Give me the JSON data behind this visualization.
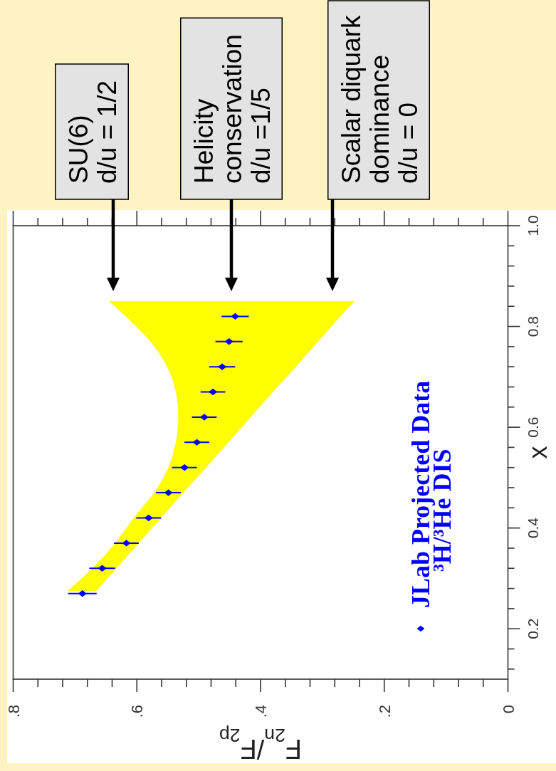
{
  "chart_data": {
    "type": "scatter",
    "orientation": "horizontal",
    "xlabel": "F$_{2n}$/F$_{2p}$",
    "ylabel": "x",
    "xlim": [
      0.8,
      0
    ],
    "ylim": [
      0.1,
      1.0
    ],
    "xticks": [
      0,
      {
        "value": 0.04,
        "label": null
      },
      {
        "value": 0.08,
        "label": null
      },
      {
        "value": 0.12,
        "label": null
      },
      {
        "value": 0.16,
        "label": null
      },
      {
        "value": 0.2,
        "label": ".2"
      },
      {
        "value": 0.24,
        "label": null
      },
      {
        "value": 0.28,
        "label": null
      },
      {
        "value": 0.32,
        "label": null
      },
      {
        "value": 0.36,
        "label": null
      },
      {
        "value": 0.4,
        "label": ".4"
      },
      {
        "value": 0.44,
        "label": null
      },
      {
        "value": 0.48,
        "label": null
      },
      {
        "value": 0.52,
        "label": null
      },
      {
        "value": 0.56,
        "label": null
      },
      {
        "value": 0.6,
        "label": ".6"
      },
      {
        "value": 0.64,
        "label": null
      },
      {
        "value": 0.68,
        "label": null
      },
      {
        "value": 0.72,
        "label": null
      },
      {
        "value": 0.76,
        "label": null
      },
      {
        "value": 0.8,
        "label": ".8"
      }
    ],
    "yticks": [
      {
        "value": 0.12,
        "label": null
      },
      {
        "value": 0.16,
        "label": null
      },
      0.2,
      {
        "value": 0.24,
        "label": null
      },
      {
        "value": 0.28,
        "label": null
      },
      {
        "value": 0.32,
        "label": null
      },
      {
        "value": 0.36,
        "label": null
      },
      0.4,
      {
        "value": 0.44,
        "label": null
      },
      {
        "value": 0.48,
        "label": null
      },
      {
        "value": 0.52,
        "label": null
      },
      {
        "value": 0.56,
        "label": null
      },
      0.6,
      {
        "value": 0.64,
        "label": null
      },
      {
        "value": 0.68,
        "label": null
      },
      {
        "value": 0.72,
        "label": null
      },
      {
        "value": 0.76,
        "label": null
      },
      0.8,
      {
        "value": 0.84,
        "label": null
      },
      {
        "value": 0.88,
        "label": null
      },
      {
        "value": 0.92,
        "label": null
      },
      {
        "value": 0.96,
        "label": null
      },
      {
        "value": 1.0,
        "label": "1.0"
      }
    ],
    "legend": "right",
    "marker": "diamond",
    "series": [
      {
        "type": "area",
        "color": "#ffff00",
        "x": [
          0.275,
          0.32,
          0.37,
          0.42,
          0.47,
          0.52,
          0.57,
          0.62,
          0.67,
          0.72,
          0.77,
          0.82,
          0.85
        ],
        "values": [
          null,
          null,
          null,
          null,
          null,
          null,
          null,
          null,
          null,
          null,
          null,
          null,
          null
        ],
        "lower": [
          0.666,
          0.633,
          0.597,
          0.561,
          0.525,
          0.488,
          0.452,
          0.416,
          0.38,
          0.343,
          0.307,
          0.271,
          0.248
        ],
        "upper": [
          0.712,
          0.672,
          0.635,
          0.605,
          0.572,
          0.549,
          0.537,
          0.533,
          0.537,
          0.551,
          0.578,
          0.618,
          0.645
        ]
      },
      {
        "name": "JLab Projected Data\n³H/³He DIS",
        "color": "#0000ff",
        "x": [
          0.27,
          0.32,
          0.37,
          0.42,
          0.47,
          0.52,
          0.57,
          0.62,
          0.67,
          0.72,
          0.77,
          0.82
        ],
        "values": [
          0.688,
          0.656,
          0.617,
          0.581,
          0.549,
          0.523,
          0.503,
          0.491,
          0.477,
          0.462,
          0.451,
          0.441
        ],
        "errors": [
          0.023,
          0.021,
          0.02,
          0.02,
          0.02,
          0.02,
          0.02,
          0.02,
          0.02,
          0.021,
          0.022,
          0.022
        ]
      }
    ],
    "annotations": [
      "SU(6)\nd/u = 1/2",
      "Helicity\nconservation\nd/u =1/5",
      "Scalar diquark\ndominance\nd/u = 0"
    ]
  }
}
